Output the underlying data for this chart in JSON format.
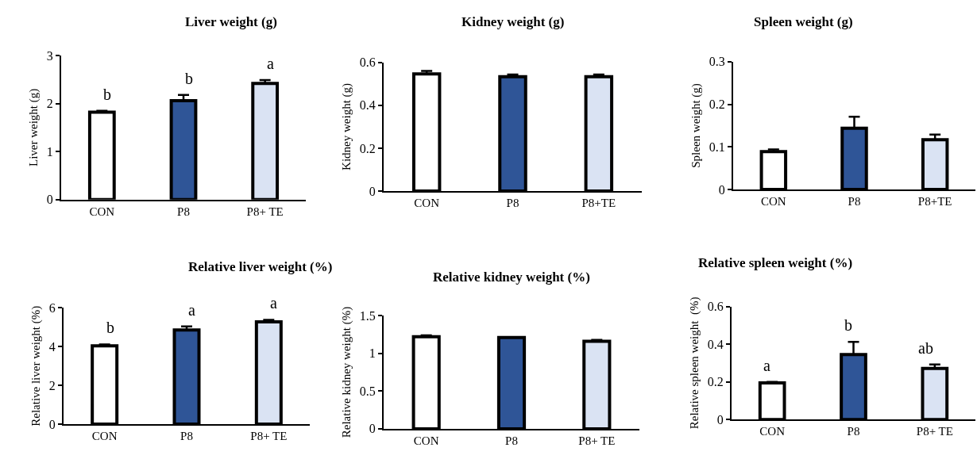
{
  "chart_data": [
    {
      "type": "bar",
      "title": "Liver weight (g)",
      "ylabel": "Liver weight (g)",
      "categories": [
        "CON",
        "P8",
        "P8+ TE"
      ],
      "values": [
        1.82,
        2.06,
        2.42
      ],
      "colors": [
        "#ffffff",
        "#2f5597",
        "#dae3f3"
      ],
      "errors": [
        [
          1.82,
          1.85
        ],
        [
          2.06,
          2.18
        ],
        [
          2.42,
          2.49
        ]
      ],
      "ylim": [
        0,
        3
      ],
      "yticks": [
        0,
        1,
        2,
        3
      ],
      "annotations": [
        "b",
        "b",
        "a"
      ]
    },
    {
      "type": "bar",
      "title": "Kidney weight (g)",
      "ylabel": "Kidney weight (g)",
      "categories": [
        "CON",
        "P8",
        "P8+TE"
      ],
      "values": [
        0.547,
        0.534,
        0.534
      ],
      "colors": [
        "#ffffff",
        "#2f5597",
        "#dae3f3"
      ],
      "errors": [
        [
          0.547,
          0.561
        ],
        [
          0.534,
          0.544
        ],
        [
          0.534,
          0.544
        ]
      ],
      "ylim": [
        0,
        0.6
      ],
      "yticks": [
        0,
        0.2,
        0.4,
        0.6
      ]
    },
    {
      "type": "bar",
      "title": "Spleen weight (g)",
      "ylabel": "Spleen weight (g)",
      "categories": [
        "CON",
        "P8",
        "P8+TE"
      ],
      "values": [
        0.089,
        0.144,
        0.117
      ],
      "colors": [
        "#ffffff",
        "#2f5597",
        "#dae3f3"
      ],
      "errors": [
        [
          0.089,
          0.094
        ],
        [
          0.144,
          0.171
        ],
        [
          0.117,
          0.129
        ]
      ],
      "ylim": [
        0,
        0.3
      ],
      "yticks": [
        0,
        0.1,
        0.2,
        0.3
      ]
    },
    {
      "type": "bar",
      "title": "Relative liver weight (%)",
      "ylabel": "Relative liver weight (%)",
      "categories": [
        "CON",
        "P8",
        "P8+ TE"
      ],
      "values": [
        4.04,
        4.86,
        5.28
      ],
      "colors": [
        "#ffffff",
        "#2f5597",
        "#dae3f3"
      ],
      "errors": [
        [
          4.04,
          4.12
        ],
        [
          4.86,
          5.05
        ],
        [
          5.28,
          5.39
        ]
      ],
      "ylim": [
        0,
        6
      ],
      "yticks": [
        0,
        2,
        4,
        6
      ],
      "annotations": [
        "b",
        "a",
        "a"
      ]
    },
    {
      "type": "bar",
      "title": "Relative kidney weight (%)",
      "ylabel": "Relative kidney weight (%)",
      "categories": [
        "CON",
        "P8",
        "P8+ TE"
      ],
      "values": [
        1.22,
        1.21,
        1.16
      ],
      "colors": [
        "#ffffff",
        "#2f5597",
        "#dae3f3"
      ],
      "errors": [
        [
          1.22,
          1.24
        ],
        null,
        [
          1.16,
          1.18
        ]
      ],
      "ylim": [
        0,
        1.5
      ],
      "yticks": [
        0,
        0.5,
        1,
        1.5
      ]
    },
    {
      "type": "bar",
      "title": "Relative spleen weight (%)",
      "ylabel": "Relative spleen weight  (%)",
      "categories": [
        "CON",
        "P8",
        "P8+ TE"
      ],
      "values": [
        0.194,
        0.345,
        0.271
      ],
      "colors": [
        "#ffffff",
        "#2f5597",
        "#dae3f3"
      ],
      "errors": [
        [
          0.194,
          0.2
        ],
        [
          0.345,
          0.412
        ],
        [
          0.271,
          0.292
        ]
      ],
      "ylim": [
        0,
        0.6
      ],
      "yticks": [
        0,
        0.2,
        0.4,
        0.6
      ],
      "annotations": [
        "a",
        "b",
        "ab"
      ]
    }
  ]
}
